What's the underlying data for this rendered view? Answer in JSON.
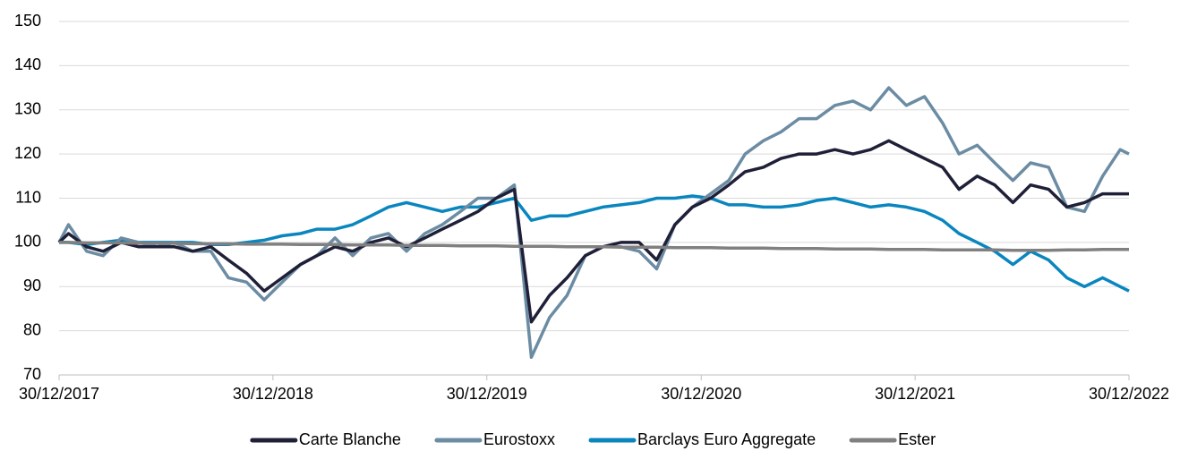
{
  "chart_data": {
    "type": "line",
    "x": [
      "30/12/2017",
      "15/01/2018",
      "15/02/2018",
      "15/03/2018",
      "15/04/2018",
      "15/05/2018",
      "15/06/2018",
      "15/07/2018",
      "15/08/2018",
      "15/09/2018",
      "15/10/2018",
      "15/11/2018",
      "15/12/2018",
      "15/01/2019",
      "15/02/2019",
      "15/03/2019",
      "15/04/2019",
      "15/05/2019",
      "15/06/2019",
      "15/07/2019",
      "15/08/2019",
      "15/09/2019",
      "15/10/2019",
      "15/11/2019",
      "15/12/2019",
      "15/01/2020",
      "15/02/2020",
      "15/03/2020",
      "15/04/2020",
      "15/05/2020",
      "15/06/2020",
      "15/07/2020",
      "15/08/2020",
      "15/09/2020",
      "15/10/2020",
      "15/11/2020",
      "15/12/2020",
      "15/01/2021",
      "15/02/2021",
      "15/03/2021",
      "15/04/2021",
      "15/05/2021",
      "15/06/2021",
      "15/07/2021",
      "15/08/2021",
      "15/09/2021",
      "15/10/2021",
      "15/11/2021",
      "15/12/2021",
      "15/01/2022",
      "15/02/2022",
      "15/03/2022",
      "15/04/2022",
      "15/05/2022",
      "15/06/2022",
      "15/07/2022",
      "15/08/2022",
      "15/09/2022",
      "15/10/2022",
      "15/11/2022",
      "15/12/2022",
      "30/12/2022"
    ],
    "series": [
      {
        "name": "Carte Blanche",
        "color": "#1f2038",
        "values": [
          100,
          102,
          99,
          98,
          100,
          99,
          99,
          99,
          98,
          99,
          96,
          93,
          89,
          92,
          95,
          97,
          99,
          98,
          100,
          101,
          99,
          101,
          103,
          105,
          107,
          110,
          112,
          82,
          88,
          92,
          97,
          99,
          100,
          100,
          96,
          104,
          108,
          110,
          113,
          116,
          117,
          119,
          120,
          120,
          121,
          120,
          121,
          123,
          121,
          119,
          117,
          112,
          115,
          113,
          109,
          113,
          112,
          108,
          109,
          111,
          111,
          111
        ]
      },
      {
        "name": "Eurostoxx",
        "color": "#6b8ca3",
        "values": [
          100,
          104,
          98,
          97,
          101,
          100,
          99,
          100,
          98,
          98,
          92,
          91,
          87,
          91,
          95,
          97,
          101,
          97,
          101,
          102,
          98,
          102,
          104,
          107,
          110,
          110,
          113,
          74,
          83,
          88,
          97,
          99,
          99,
          98,
          94,
          104,
          108,
          111,
          114,
          120,
          123,
          125,
          128,
          128,
          131,
          132,
          130,
          135,
          131,
          133,
          127,
          120,
          122,
          118,
          114,
          118,
          117,
          108,
          107,
          115,
          121,
          120
        ]
      },
      {
        "name": "Barclays Euro Aggregate",
        "color": "#0a86bf",
        "values": [
          100,
          100,
          99.5,
          100,
          100.5,
          100,
          100,
          100,
          100,
          99.5,
          99.5,
          100,
          100.5,
          101.5,
          102,
          103,
          103,
          104,
          106,
          108,
          109,
          108,
          107,
          108,
          108,
          109,
          110,
          105,
          106,
          106,
          107,
          108,
          108.5,
          109,
          110,
          110,
          110.5,
          110,
          108.5,
          108.5,
          108,
          108,
          108.5,
          109.5,
          110,
          109,
          108,
          108.5,
          108,
          107,
          105,
          102,
          100,
          98,
          95,
          98,
          96,
          92,
          90,
          92,
          90,
          89
        ]
      },
      {
        "name": "Ester",
        "color": "#808080",
        "values": [
          100,
          100,
          99.9,
          99.9,
          99.9,
          99.8,
          99.8,
          99.8,
          99.7,
          99.7,
          99.7,
          99.6,
          99.6,
          99.6,
          99.5,
          99.5,
          99.5,
          99.4,
          99.4,
          99.4,
          99.3,
          99.3,
          99.3,
          99.2,
          99.2,
          99.2,
          99.1,
          99.1,
          99.1,
          99.0,
          99.0,
          99.0,
          98.9,
          98.9,
          98.9,
          98.8,
          98.8,
          98.8,
          98.7,
          98.7,
          98.7,
          98.6,
          98.6,
          98.6,
          98.5,
          98.5,
          98.5,
          98.4,
          98.4,
          98.4,
          98.3,
          98.3,
          98.3,
          98.3,
          98.2,
          98.2,
          98.2,
          98.3,
          98.3,
          98.4,
          98.4,
          98.4
        ]
      }
    ],
    "xlim": [
      "30/12/2017",
      "30/12/2022"
    ],
    "xticks": [
      "30/12/2017",
      "30/12/2018",
      "30/12/2019",
      "30/12/2020",
      "30/12/2021",
      "30/12/2022"
    ],
    "ylim": [
      70,
      150
    ],
    "yticks": [
      70,
      80,
      90,
      100,
      110,
      120,
      130,
      140,
      150
    ],
    "grid": true,
    "legend": "bottom"
  }
}
